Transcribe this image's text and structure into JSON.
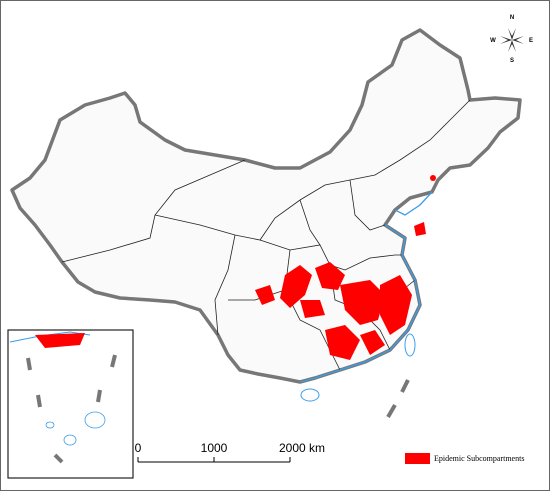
{
  "compass": {
    "north": "N",
    "south": "S",
    "east": "E",
    "west": "W"
  },
  "scale_bar": {
    "labels": [
      "0",
      "1000",
      "2000 km"
    ]
  },
  "legend": {
    "label": "Epidemic Subcompartments"
  }
}
